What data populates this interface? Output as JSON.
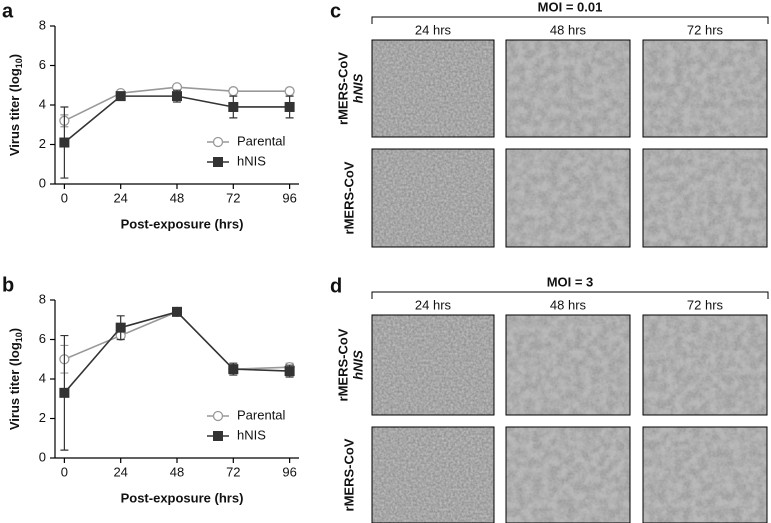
{
  "chart_data": [
    {
      "type": "line",
      "panel_label": "a",
      "xlabel": "Post-exposure (hrs)",
      "ylabel": [
        "Virus titer (log",
        "10",
        ")"
      ],
      "x": [
        0,
        24,
        48,
        72,
        96
      ],
      "xlim": [
        -4,
        100
      ],
      "xticks": [
        0,
        24,
        48,
        72,
        96
      ],
      "ylim": [
        0,
        8
      ],
      "yticks": [
        0,
        2,
        4,
        6,
        8
      ],
      "legend": "lower right",
      "series": [
        {
          "name": "Parental",
          "color": "#999999",
          "marker": "circle",
          "values": [
            3.2,
            4.6,
            4.9,
            4.7,
            4.7
          ],
          "errors": [
            0.3,
            0.1,
            0.1,
            0.1,
            0.1
          ]
        },
        {
          "name": "hNIS",
          "color": "#333333",
          "marker": "square",
          "values": [
            2.1,
            4.45,
            4.45,
            3.9,
            3.9
          ],
          "errors": [
            1.8,
            0.15,
            0.3,
            0.55,
            0.55
          ]
        }
      ]
    },
    {
      "type": "line",
      "panel_label": "b",
      "xlabel": "Post-exposure (hrs)",
      "ylabel": [
        "Virus titer (log",
        "10",
        ")"
      ],
      "x": [
        0,
        24,
        48,
        72,
        96
      ],
      "xlim": [
        -4,
        100
      ],
      "xticks": [
        0,
        24,
        48,
        72,
        96
      ],
      "ylim": [
        0,
        8
      ],
      "yticks": [
        0,
        2,
        4,
        6,
        8
      ],
      "legend": "lower right",
      "series": [
        {
          "name": "Parental",
          "color": "#999999",
          "marker": "circle",
          "values": [
            5.0,
            6.2,
            7.4,
            4.5,
            4.6
          ],
          "errors": [
            0.7,
            0.1,
            0.15,
            0.1,
            0.2
          ]
        },
        {
          "name": "hNIS",
          "color": "#333333",
          "marker": "square",
          "values": [
            3.3,
            6.6,
            7.4,
            4.5,
            4.4
          ],
          "errors": [
            2.9,
            0.6,
            0.2,
            0.3,
            0.3
          ]
        }
      ]
    }
  ],
  "image_panels": [
    {
      "panel_label": "c",
      "title": "MOI = 0.01",
      "columns": [
        "24 hrs",
        "48 hrs",
        "72 hrs"
      ],
      "rows": [
        [
          "rMERS-CoV",
          "hNIS"
        ],
        [
          "rMERS-CoV"
        ]
      ]
    },
    {
      "panel_label": "d",
      "title": "MOI = 3",
      "columns": [
        "24 hrs",
        "48 hrs",
        "72 hrs"
      ],
      "rows": [
        [
          "rMERS-CoV",
          "hNIS"
        ],
        [
          "rMERS-CoV"
        ]
      ]
    }
  ]
}
